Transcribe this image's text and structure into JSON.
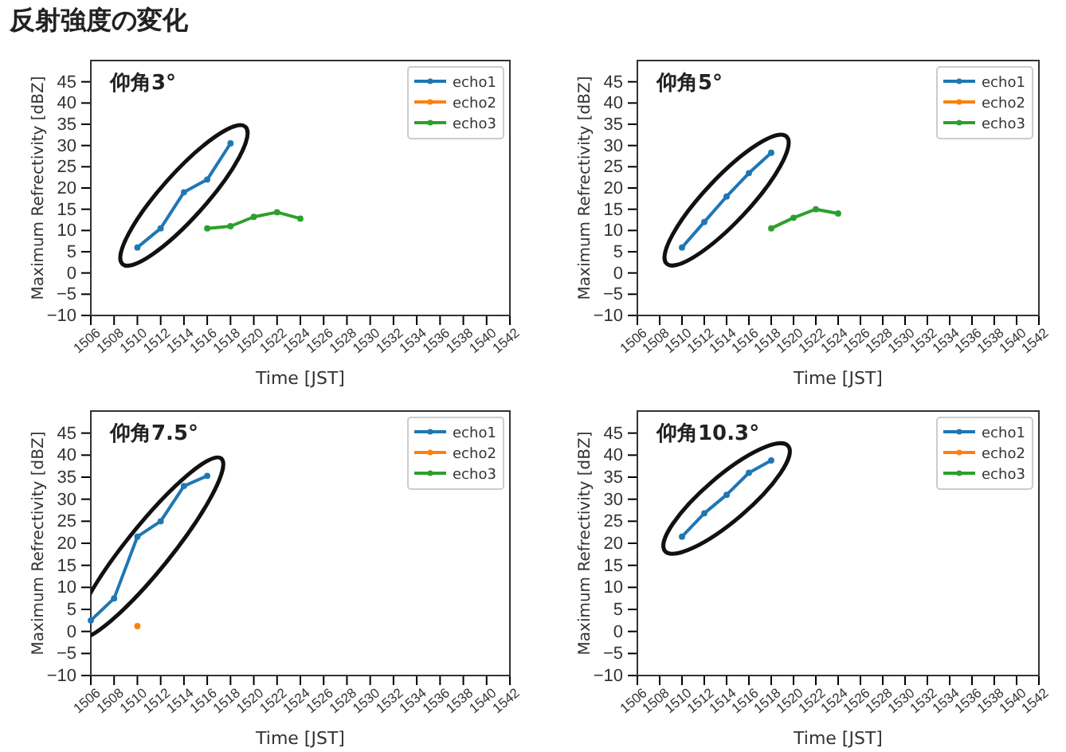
{
  "chart_data": [
    {
      "type": "line",
      "title": "反射強度の変化",
      "annotations": [
        "仰角3°"
      ],
      "xlabel": "Time [JST]",
      "ylabel": "Maximum Refrectivity [dBZ]",
      "xlim": [
        1506,
        1542
      ],
      "xticks": [
        1506,
        1508,
        1510,
        1512,
        1514,
        1516,
        1518,
        1520,
        1522,
        1524,
        1526,
        1528,
        1530,
        1532,
        1534,
        1536,
        1538,
        1540,
        1542
      ],
      "ylim": [
        -10,
        50
      ],
      "yticks": [
        -10,
        -5,
        0,
        5,
        10,
        15,
        20,
        25,
        30,
        35,
        40,
        45
      ],
      "legend": "top right",
      "marker": "circle",
      "line_style": "solid",
      "series": [
        {
          "name": "echo1",
          "color": "#1f77b4",
          "x": [
            1510,
            1512,
            1514,
            1516,
            1518
          ],
          "values": [
            6,
            10.5,
            19,
            22,
            30.5
          ]
        },
        {
          "name": "echo2",
          "color": "#ff7f0e"
        },
        {
          "name": "echo3",
          "color": "#2ca02c",
          "x": [
            1516,
            1518,
            1520,
            1522,
            1524
          ],
          "values": [
            10.5,
            11,
            13.2,
            14.3,
            12.8
          ]
        }
      ]
    },
    {
      "type": "line",
      "annotations": [
        "仰角5°"
      ],
      "xlabel": "Time [JST]",
      "ylabel": "Maximum Refrectivity [dBZ]",
      "xlim": [
        1506,
        1542
      ],
      "xticks": [
        1506,
        1508,
        1510,
        1512,
        1514,
        1516,
        1518,
        1520,
        1522,
        1524,
        1526,
        1528,
        1530,
        1532,
        1534,
        1536,
        1538,
        1540,
        1542
      ],
      "ylim": [
        -10,
        50
      ],
      "yticks": [
        -10,
        -5,
        0,
        5,
        10,
        15,
        20,
        25,
        30,
        35,
        40,
        45
      ],
      "legend": "top right",
      "marker": "circle",
      "line_style": "solid",
      "series": [
        {
          "name": "echo1",
          "color": "#1f77b4",
          "x": [
            1510,
            1512,
            1514,
            1516,
            1518
          ],
          "values": [
            6,
            12,
            18,
            23.5,
            28.3
          ]
        },
        {
          "name": "echo2",
          "color": "#ff7f0e"
        },
        {
          "name": "echo3",
          "color": "#2ca02c",
          "x": [
            1518,
            1520,
            1522,
            1524
          ],
          "values": [
            10.5,
            13,
            15,
            14
          ]
        }
      ]
    },
    {
      "type": "line",
      "annotations": [
        "仰角7.5°"
      ],
      "xlabel": "Time [JST]",
      "ylabel": "Maximum Refrectivity [dBZ]",
      "xlim": [
        1506,
        1542
      ],
      "xticks": [
        1506,
        1508,
        1510,
        1512,
        1514,
        1516,
        1518,
        1520,
        1522,
        1524,
        1526,
        1528,
        1530,
        1532,
        1534,
        1536,
        1538,
        1540,
        1542
      ],
      "ylim": [
        -10,
        50
      ],
      "yticks": [
        -10,
        -5,
        0,
        5,
        10,
        15,
        20,
        25,
        30,
        35,
        40,
        45
      ],
      "legend": "top right",
      "marker": "circle",
      "line_style": "solid",
      "series": [
        {
          "name": "echo1",
          "color": "#1f77b4",
          "x": [
            1506,
            1508,
            1510,
            1512,
            1514,
            1516
          ],
          "values": [
            2.5,
            7.5,
            21.5,
            25,
            33,
            35.3
          ]
        },
        {
          "name": "echo2",
          "color": "#ff7f0e",
          "x": [
            1510
          ],
          "values": [
            1.2
          ]
        },
        {
          "name": "echo3",
          "color": "#2ca02c"
        }
      ]
    },
    {
      "type": "line",
      "annotations": [
        "仰角10.3°"
      ],
      "xlabel": "Time [JST]",
      "ylabel": "Maximum Refrectivity [dBZ]",
      "xlim": [
        1506,
        1542
      ],
      "xticks": [
        1506,
        1508,
        1510,
        1512,
        1514,
        1516,
        1518,
        1520,
        1522,
        1524,
        1526,
        1528,
        1530,
        1532,
        1534,
        1536,
        1538,
        1540,
        1542
      ],
      "ylim": [
        -10,
        50
      ],
      "yticks": [
        -10,
        -5,
        0,
        5,
        10,
        15,
        20,
        25,
        30,
        35,
        40,
        45
      ],
      "legend": "top right",
      "marker": "circle",
      "line_style": "solid",
      "series": [
        {
          "name": "echo1",
          "color": "#1f77b4",
          "x": [
            1510,
            1512,
            1514,
            1516,
            1518
          ],
          "values": [
            21.5,
            26.8,
            31,
            36,
            38.8
          ]
        },
        {
          "name": "echo2",
          "color": "#ff7f0e"
        },
        {
          "name": "echo3",
          "color": "#2ca02c"
        }
      ]
    }
  ]
}
